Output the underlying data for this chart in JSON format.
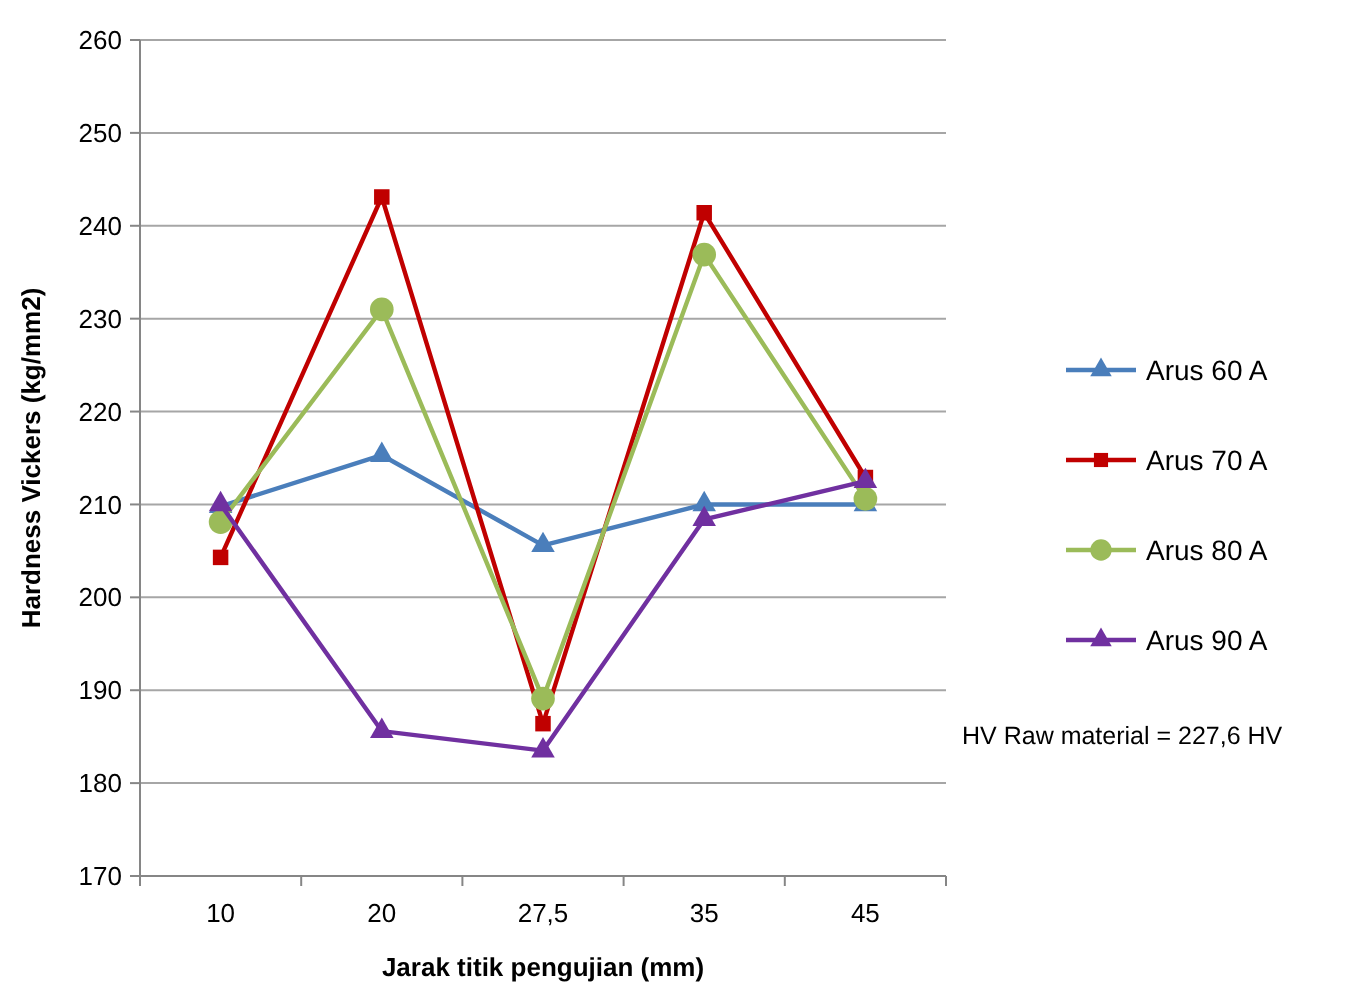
{
  "chart_data": {
    "type": "line",
    "xlabel": "Jarak titik pengujian (mm)",
    "ylabel": "Hardness Vickers (kg/mm2)",
    "categories": [
      "10",
      "20",
      "27,5",
      "35",
      "45"
    ],
    "series": [
      {
        "name": "Arus 60 A",
        "color": "#4a7ebb",
        "marker": "triangle",
        "values": [
          209.8,
          215.3,
          205.6,
          210,
          210
        ]
      },
      {
        "name": "Arus 70 A",
        "color": "#c00000",
        "marker": "square",
        "values": [
          204.3,
          243.1,
          186.4,
          241.4,
          212.9
        ]
      },
      {
        "name": "Arus 80 A",
        "color": "#9bbb59",
        "marker": "circle",
        "values": [
          208.1,
          231,
          189.1,
          236.9,
          210.6
        ]
      },
      {
        "name": "Arus 90 A",
        "color": "#7030a0",
        "marker": "triangle",
        "values": [
          210,
          185.6,
          183.5,
          208.4,
          212.5
        ]
      }
    ],
    "ylim": [
      170,
      260
    ],
    "yticks": [
      170,
      180,
      190,
      200,
      210,
      220,
      230,
      240,
      250,
      260
    ],
    "grid": "y",
    "legend": "right",
    "line_style": "solid",
    "annotations": [
      "HV Raw material = 227,6 HV"
    ]
  }
}
